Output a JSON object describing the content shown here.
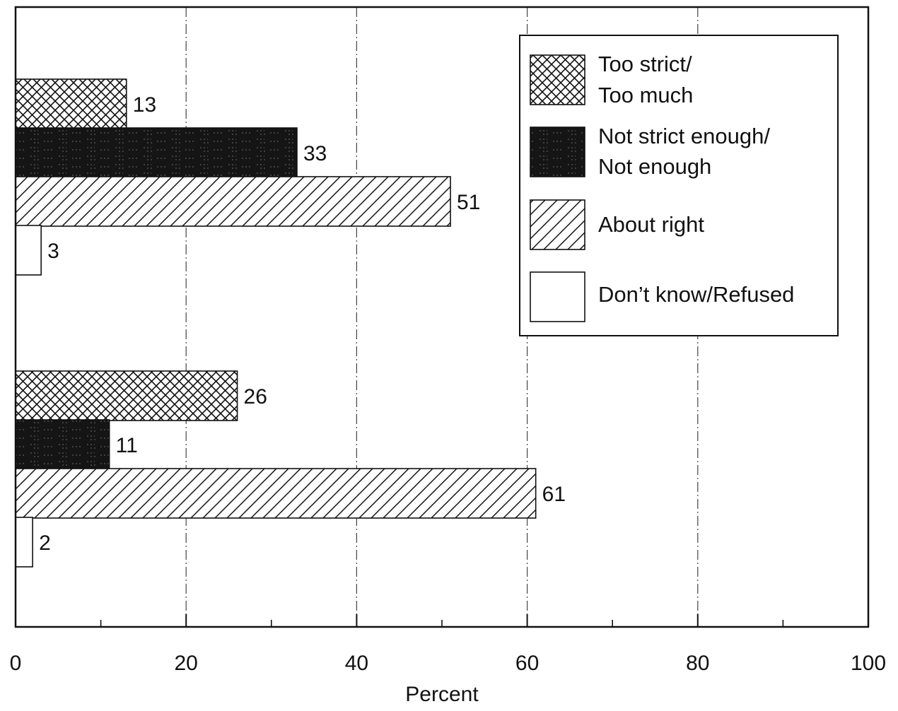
{
  "colors": {
    "ink": "#111111",
    "dark_fill": "#151515",
    "background": "#ffffff"
  },
  "chart_data": {
    "type": "bar",
    "orientation": "horizontal",
    "title": "",
    "xlabel": "Percent",
    "ylabel": "",
    "xlim": [
      0,
      100
    ],
    "x_ticks": [
      "0",
      "20",
      "40",
      "60",
      "80",
      "100"
    ],
    "x_tick_values": [
      0,
      20,
      40,
      60,
      80,
      100
    ],
    "grid": "vertical dash-dot lines at major ticks",
    "legend_position": "top-right",
    "categories": [
      "",
      ""
    ],
    "series": [
      {
        "name": "Too strict/ Too much",
        "legend_lines": [
          "Too strict/",
          "Too much"
        ],
        "pattern": "crosshatch",
        "values": [
          13,
          26
        ]
      },
      {
        "name": "Not strict enough/ Not enough",
        "legend_lines": [
          "Not strict enough/",
          "Not enough"
        ],
        "pattern": "solid-dark",
        "values": [
          33,
          11
        ]
      },
      {
        "name": "About right",
        "legend_lines": [
          "About right"
        ],
        "pattern": "diagonal",
        "values": [
          51,
          61
        ]
      },
      {
        "name": "Don’t know/Refused",
        "legend_lines": [
          "Don’t know/Refused"
        ],
        "pattern": "empty",
        "values": [
          3,
          2
        ]
      }
    ],
    "data_labels": [
      [
        "13",
        "33",
        "51",
        "3"
      ],
      [
        "26",
        "11",
        "61",
        "2"
      ]
    ]
  }
}
